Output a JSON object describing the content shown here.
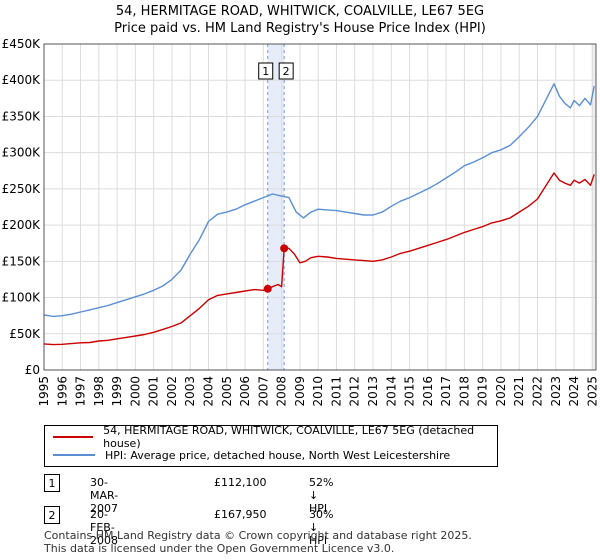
{
  "title_line1": "54, HERMITAGE ROAD, WHITWICK, COALVILLE, LE67 5EG",
  "title_line2": "Price paid vs. HM Land Registry's House Price Index (HPI)",
  "chart_data": {
    "type": "line",
    "title": "54, HERMITAGE ROAD, WHITWICK, COALVILLE, LE67 5EG — Price paid vs. HM Land Registry's House Price Index (HPI)",
    "xlim": [
      1995,
      2025.2
    ],
    "ylim": [
      0,
      450000
    ],
    "x_ticks": [
      1995,
      1996,
      1997,
      1998,
      1999,
      2000,
      2001,
      2002,
      2003,
      2004,
      2005,
      2006,
      2007,
      2008,
      2009,
      2010,
      2011,
      2012,
      2013,
      2014,
      2015,
      2016,
      2017,
      2018,
      2019,
      2020,
      2021,
      2022,
      2023,
      2024,
      2025
    ],
    "y_ticks": [
      0,
      50000,
      100000,
      150000,
      200000,
      250000,
      300000,
      350000,
      400000,
      450000
    ],
    "y_tick_labels": [
      "£0",
      "£50K",
      "£100K",
      "£150K",
      "£200K",
      "£250K",
      "£300K",
      "£350K",
      "£400K",
      "£450K"
    ],
    "series": [
      {
        "name": "54, HERMITAGE ROAD, WHITWICK, COALVILLE, LE67 5EG (detached house)",
        "color": "#cc0000",
        "x": [
          1995.0,
          1995.5,
          1996.0,
          1996.5,
          1997.0,
          1997.5,
          1998.0,
          1998.5,
          1999.0,
          1999.5,
          2000.0,
          2000.5,
          2001.0,
          2001.5,
          2002.0,
          2002.5,
          2003.0,
          2003.5,
          2004.0,
          2004.5,
          2005.0,
          2005.5,
          2006.0,
          2006.5,
          2007.0,
          2007.24,
          2007.5,
          2007.8,
          2008.0,
          2008.14,
          2008.4,
          2008.7,
          2009.0,
          2009.3,
          2009.6,
          2010.0,
          2010.5,
          2011.0,
          2011.5,
          2012.0,
          2012.5,
          2013.0,
          2013.5,
          2014.0,
          2014.5,
          2015.0,
          2015.5,
          2016.0,
          2016.5,
          2017.0,
          2017.5,
          2018.0,
          2018.5,
          2019.0,
          2019.5,
          2020.0,
          2020.5,
          2021.0,
          2021.5,
          2022.0,
          2022.3,
          2022.6,
          2022.9,
          2023.2,
          2023.5,
          2023.8,
          2024.0,
          2024.3,
          2024.6,
          2024.9,
          2025.1
        ],
        "y": [
          36000,
          35000,
          35500,
          36500,
          37500,
          38000,
          40000,
          41000,
          43000,
          45000,
          47000,
          49000,
          52000,
          56000,
          60000,
          65000,
          75000,
          85000,
          97000,
          103000,
          105000,
          107000,
          109000,
          111000,
          110000,
          112100,
          115000,
          118000,
          115000,
          167950,
          168000,
          160000,
          148000,
          150000,
          155000,
          157000,
          156000,
          154000,
          153000,
          152000,
          151000,
          150000,
          152000,
          156000,
          161000,
          164000,
          168000,
          172000,
          176000,
          180000,
          185000,
          190000,
          194000,
          198000,
          203000,
          206000,
          210000,
          218000,
          226000,
          236000,
          248000,
          260000,
          272000,
          262000,
          258000,
          255000,
          262000,
          258000,
          263000,
          255000,
          270000
        ]
      },
      {
        "name": "HPI: Average price, detached house, North West Leicestershire",
        "color": "#5b8fd4",
        "x": [
          1995.0,
          1995.5,
          1996.0,
          1996.5,
          1997.0,
          1997.5,
          1998.0,
          1998.5,
          1999.0,
          1999.5,
          2000.0,
          2000.5,
          2001.0,
          2001.5,
          2002.0,
          2002.5,
          2003.0,
          2003.5,
          2004.0,
          2004.5,
          2005.0,
          2005.5,
          2006.0,
          2006.5,
          2007.0,
          2007.5,
          2008.0,
          2008.4,
          2008.8,
          2009.2,
          2009.6,
          2010.0,
          2010.5,
          2011.0,
          2011.5,
          2012.0,
          2012.5,
          2013.0,
          2013.5,
          2014.0,
          2014.5,
          2015.0,
          2015.5,
          2016.0,
          2016.5,
          2017.0,
          2017.5,
          2018.0,
          2018.5,
          2019.0,
          2019.5,
          2020.0,
          2020.5,
          2021.0,
          2021.5,
          2022.0,
          2022.3,
          2022.6,
          2022.9,
          2023.2,
          2023.5,
          2023.8,
          2024.0,
          2024.3,
          2024.6,
          2024.9,
          2025.1
        ],
        "y": [
          76000,
          74000,
          75000,
          77000,
          80000,
          83000,
          86000,
          89000,
          93000,
          97000,
          101000,
          105000,
          110000,
          116000,
          125000,
          138000,
          160000,
          180000,
          205000,
          215000,
          218000,
          222000,
          228000,
          233000,
          238000,
          243000,
          240000,
          238000,
          218000,
          210000,
          218000,
          222000,
          221000,
          220000,
          218000,
          216000,
          214000,
          214000,
          218000,
          226000,
          233000,
          238000,
          244000,
          250000,
          257000,
          265000,
          273000,
          282000,
          287000,
          293000,
          300000,
          304000,
          310000,
          322000,
          335000,
          350000,
          365000,
          380000,
          395000,
          378000,
          368000,
          362000,
          372000,
          365000,
          375000,
          366000,
          392000
        ]
      }
    ],
    "annotations": [
      {
        "label": "1",
        "x": 2007.24,
        "y": 112100
      },
      {
        "label": "2",
        "x": 2008.14,
        "y": 167950
      }
    ]
  },
  "legend": {
    "property_label": "54, HERMITAGE ROAD, WHITWICK, COALVILLE, LE67 5EG (detached house)",
    "hpi_label": "HPI: Average price, detached house, North West Leicestershire"
  },
  "transactions": [
    {
      "id": "1",
      "date": "30-MAR-2007",
      "price": "£112,100",
      "hpi": "52% ↓ HPI"
    },
    {
      "id": "2",
      "date": "20-FEB-2008",
      "price": "£167,950",
      "hpi": "30% ↓ HPI"
    }
  ],
  "footer_line1": "Contains HM Land Registry data © Crown copyright and database right 2025.",
  "footer_line2": "This data is licensed under the Open Government Licence v3.0.",
  "colors": {
    "property": "#cc0000",
    "hpi": "#5b8fd4",
    "grid": "#dddddd",
    "shade": "#dbe4f5"
  }
}
